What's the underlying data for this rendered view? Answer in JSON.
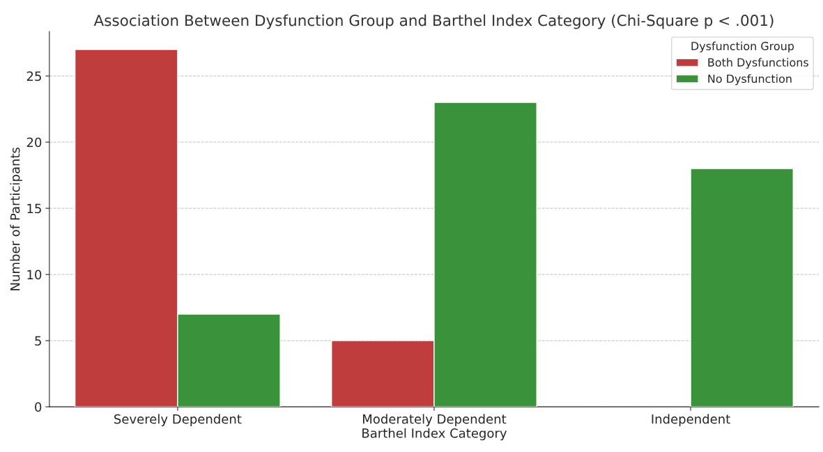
{
  "chart_data": {
    "type": "bar",
    "title": "Association Between Dysfunction Group and Barthel Index Category (Chi-Square p < .001)",
    "xlabel": "Barthel Index Category",
    "ylabel": "Number of Participants",
    "legend_title": "Dysfunction Group",
    "categories": [
      "Severely Dependent",
      "Moderately Dependent",
      "Independent"
    ],
    "series": [
      {
        "name": "Both Dysfunctions",
        "color": "#c03d3e",
        "values": [
          27,
          5,
          null
        ]
      },
      {
        "name": "No Dysfunction",
        "color": "#3a923a",
        "values": [
          7,
          23,
          18
        ]
      }
    ],
    "ylim": [
      0,
      28.35
    ],
    "yticks": [
      0,
      5,
      10,
      15,
      20,
      25
    ],
    "grid": "y",
    "legend": "top right"
  }
}
